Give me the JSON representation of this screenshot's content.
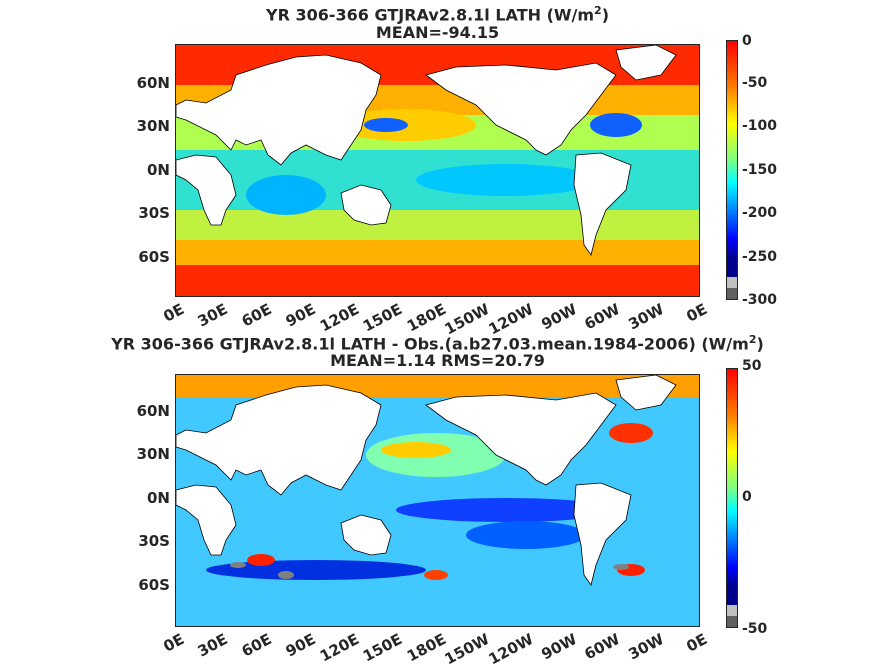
{
  "panels": [
    {
      "title_main": "YR 306-366 GTJRAv2.8.1l  LATH (W/m",
      "title_sup": "2",
      "title_close": ")",
      "subtitle": "MEAN=-94.15",
      "colorbar_ticks": [
        "0",
        "-50",
        "-100",
        "-150",
        "-200",
        "-250",
        "-300"
      ]
    },
    {
      "title_main": "YR 306-366 GTJRAv2.8.1l LATH - Obs.(a.b27.03.mean.1984-2006) (W/m",
      "title_sup": "2",
      "title_close": ")",
      "subtitle": "MEAN=1.14 RMS=20.79",
      "colorbar_ticks": [
        "50",
        "0",
        "-50"
      ]
    }
  ],
  "lat_labels": [
    "60N",
    "30N",
    "0N",
    "30S",
    "60S"
  ],
  "lon_labels": [
    "0E",
    "30E",
    "60E",
    "90E",
    "120E",
    "150E",
    "180E",
    "150W",
    "120W",
    "90W",
    "60W",
    "30W",
    "0E"
  ],
  "colors": {
    "jet": [
      "#00008f",
      "#0000ff",
      "#0080ff",
      "#00ffff",
      "#80ff80",
      "#ffff00",
      "#ff8000",
      "#ff0000",
      "#800000"
    ],
    "land": "#ffffff",
    "missing": "#808080"
  }
}
